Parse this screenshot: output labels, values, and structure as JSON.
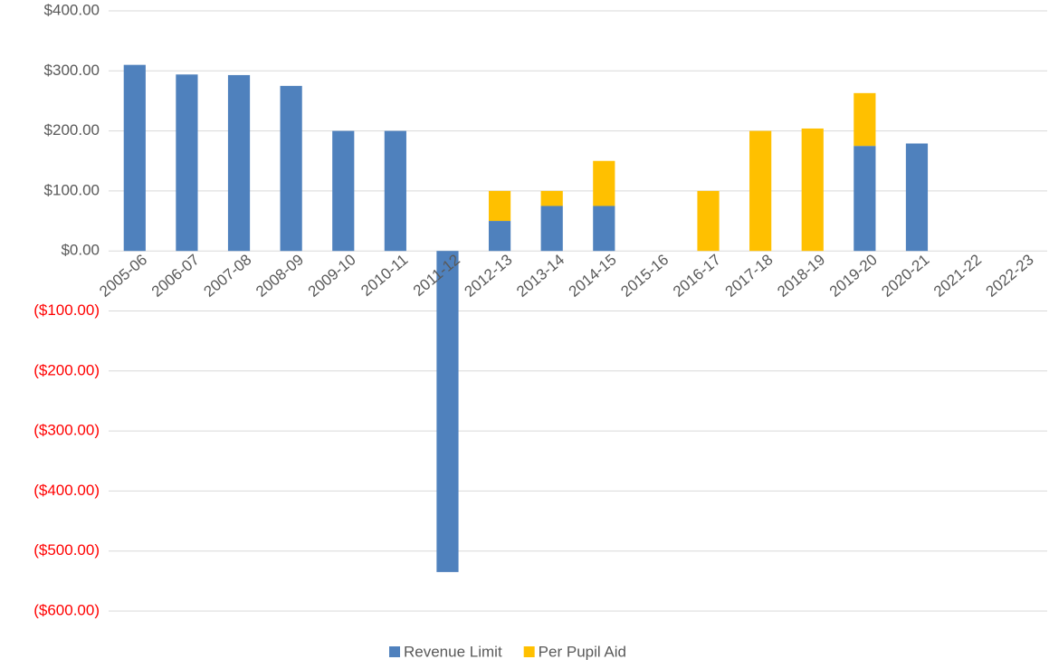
{
  "chart_data": {
    "type": "stacked_bar",
    "categories": [
      "2005-06",
      "2006-07",
      "2007-08",
      "2008-09",
      "2009-10",
      "2010-11",
      "2011-12",
      "2012-13",
      "2013-14",
      "2014-15",
      "2015-16",
      "2016-17",
      "2017-18",
      "2018-19",
      "2019-20",
      "2020-21",
      "2021-22",
      "2022-23"
    ],
    "series": [
      {
        "name": "Revenue Limit",
        "color": "#4f81bd",
        "values": [
          310,
          294,
          293,
          275,
          200,
          200,
          -535,
          50,
          75,
          75,
          null,
          null,
          null,
          null,
          175,
          179,
          null,
          null
        ]
      },
      {
        "name": "Per Pupil Aid",
        "color": "#ffc000",
        "values": [
          null,
          null,
          null,
          null,
          null,
          null,
          null,
          50,
          25,
          75,
          null,
          100,
          200,
          204,
          88,
          null,
          null,
          null
        ]
      }
    ],
    "ylim": [
      -600,
      400
    ],
    "yticks": [
      {
        "value": 400,
        "label": "$400.00"
      },
      {
        "value": 300,
        "label": "$300.00"
      },
      {
        "value": 200,
        "label": "$200.00"
      },
      {
        "value": 100,
        "label": "$100.00"
      },
      {
        "value": 0,
        "label": "$0.00"
      },
      {
        "value": -100,
        "label": "($100.00)"
      },
      {
        "value": -200,
        "label": "($200.00)"
      },
      {
        "value": -300,
        "label": "($300.00)"
      },
      {
        "value": -400,
        "label": "($400.00)"
      },
      {
        "value": -500,
        "label": "($500.00)"
      },
      {
        "value": -600,
        "label": "($600.00)"
      }
    ],
    "grid": true,
    "negative_label_color": "#ff0000",
    "legend": "bottom"
  }
}
